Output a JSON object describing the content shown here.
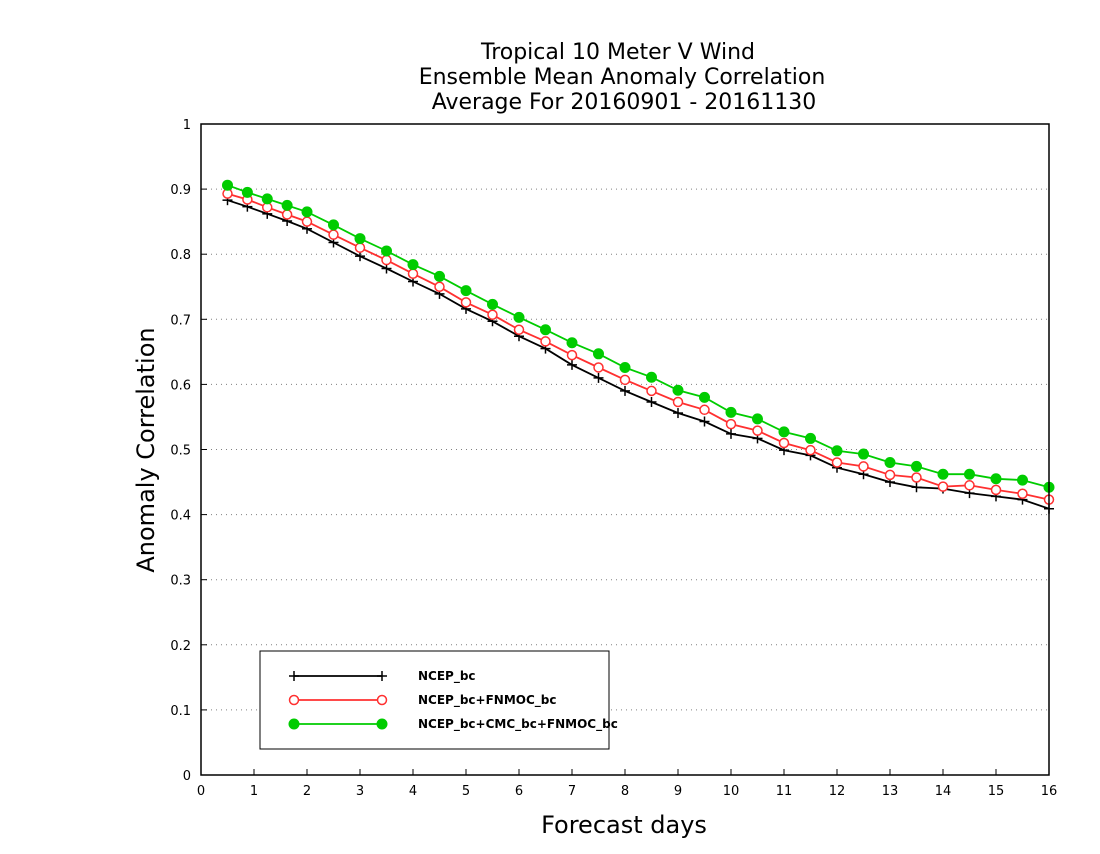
{
  "chart_data": {
    "type": "line",
    "title_lines": [
      "Tropical 10 Meter V Wind",
      "Ensemble Mean Anomaly Correlation",
      "Average For 20160901 - 20161130"
    ],
    "xlabel": "Forecast days",
    "ylabel": "Anomaly Correlation",
    "xlim": [
      0,
      16
    ],
    "ylim": [
      0,
      1
    ],
    "xticks": [
      0,
      1,
      2,
      3,
      4,
      5,
      6,
      7,
      8,
      9,
      10,
      11,
      12,
      13,
      14,
      15,
      16
    ],
    "yticks": [
      0,
      0.1,
      0.2,
      0.3,
      0.4,
      0.5,
      0.6,
      0.7,
      0.8,
      0.9,
      1
    ],
    "ytick_labels": [
      "0",
      "0.1",
      "0.2",
      "0.3",
      "0.4",
      "0.5",
      "0.6",
      "0.7",
      "0.8",
      "0.9",
      "1"
    ],
    "grid": "horizontal dotted",
    "legend_position": "bottom-left",
    "x": [
      0.5,
      0.875,
      1.25,
      1.625,
      2.0,
      2.5,
      3.0,
      3.5,
      4.0,
      4.5,
      5.0,
      5.5,
      6.0,
      6.5,
      7.0,
      7.5,
      8.0,
      8.5,
      9.0,
      9.5,
      10.0,
      10.5,
      11.0,
      11.5,
      12.0,
      12.5,
      13.0,
      13.5,
      14.0,
      14.5,
      15.0,
      15.5,
      16.0
    ],
    "series": [
      {
        "name": "NCEP_bc",
        "color": "#000000",
        "marker": "plus",
        "values": [
          0.883,
          0.873,
          0.862,
          0.851,
          0.839,
          0.818,
          0.797,
          0.778,
          0.758,
          0.739,
          0.716,
          0.697,
          0.674,
          0.655,
          0.63,
          0.61,
          0.59,
          0.573,
          0.556,
          0.543,
          0.524,
          0.517,
          0.499,
          0.491,
          0.472,
          0.462,
          0.45,
          0.442,
          0.44,
          0.433,
          0.428,
          0.423,
          0.409
        ]
      },
      {
        "name": "NCEP_bc+FNMOC_bc",
        "color": "#ff3030",
        "marker": "open-circle",
        "values": [
          0.893,
          0.884,
          0.872,
          0.861,
          0.85,
          0.83,
          0.81,
          0.791,
          0.77,
          0.75,
          0.726,
          0.707,
          0.684,
          0.666,
          0.645,
          0.626,
          0.607,
          0.59,
          0.573,
          0.561,
          0.539,
          0.529,
          0.51,
          0.499,
          0.48,
          0.474,
          0.461,
          0.457,
          0.443,
          0.445,
          0.438,
          0.432,
          0.423
        ]
      },
      {
        "name": "NCEP_bc+CMC_bc+FNMOC_bc",
        "color": "#00cc00",
        "marker": "filled-circle",
        "values": [
          0.906,
          0.895,
          0.885,
          0.875,
          0.865,
          0.845,
          0.824,
          0.805,
          0.784,
          0.766,
          0.744,
          0.723,
          0.703,
          0.684,
          0.664,
          0.647,
          0.626,
          0.611,
          0.591,
          0.58,
          0.557,
          0.547,
          0.527,
          0.517,
          0.498,
          0.493,
          0.48,
          0.474,
          0.462,
          0.462,
          0.455,
          0.453,
          0.442
        ]
      }
    ]
  }
}
